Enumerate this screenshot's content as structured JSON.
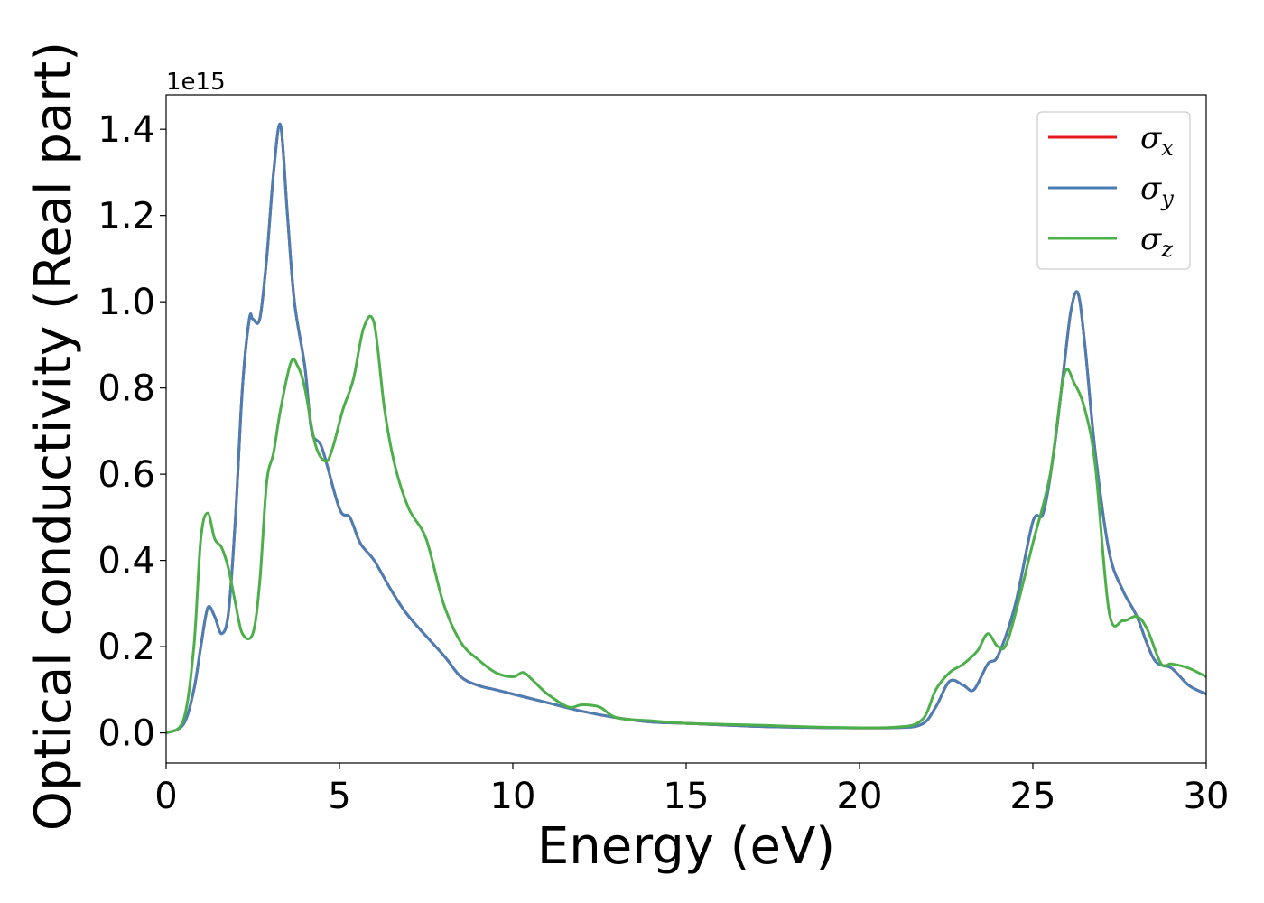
{
  "chart_data": {
    "type": "line",
    "title": "",
    "xlabel": "Energy (eV)",
    "ylabel": "Optical conductivity (Real part)",
    "y_offset_text": "1e15",
    "xlim": [
      0,
      30
    ],
    "ylim": [
      -0.07,
      1.48
    ],
    "xticks": [
      0,
      5,
      10,
      15,
      20,
      25,
      30
    ],
    "xtick_labels": [
      "0",
      "5",
      "10",
      "15",
      "20",
      "25",
      "30"
    ],
    "yticks": [
      0.0,
      0.2,
      0.4,
      0.6,
      0.8,
      1.0,
      1.2,
      1.4
    ],
    "ytick_labels": [
      "0.0",
      "0.2",
      "0.4",
      "0.6",
      "0.8",
      "1.0",
      "1.2",
      "1.4"
    ],
    "grid": false,
    "legend_position": "top-right",
    "series": [
      {
        "name": "σx",
        "symbol": "σ",
        "subscript": "x",
        "color": "#e41a1c",
        "x": [
          0,
          0.5,
          0.8,
          1.0,
          1.2,
          1.4,
          1.6,
          1.8,
          2.0,
          2.2,
          2.4,
          2.5,
          2.7,
          2.9,
          3.1,
          3.3,
          3.5,
          3.7,
          4.0,
          4.2,
          4.5,
          5.0,
          5.3,
          5.6,
          6.0,
          6.5,
          7.0,
          8.0,
          8.5,
          9.0,
          9.5,
          10.0,
          10.5,
          11.0,
          12.0,
          13.0,
          14.0,
          15.0,
          17.0,
          19.0,
          21.0,
          21.8,
          22.2,
          22.6,
          23.0,
          23.3,
          23.7,
          24.0,
          24.5,
          25.0,
          25.3,
          25.6,
          25.9,
          26.1,
          26.3,
          26.5,
          26.8,
          27.2,
          27.6,
          28.0,
          28.5,
          29.0,
          29.5,
          30.0
        ],
        "y": [
          0.0,
          0.02,
          0.1,
          0.2,
          0.29,
          0.27,
          0.23,
          0.28,
          0.5,
          0.8,
          0.96,
          0.96,
          0.96,
          1.1,
          1.3,
          1.41,
          1.2,
          1.0,
          0.85,
          0.7,
          0.66,
          0.52,
          0.5,
          0.44,
          0.4,
          0.33,
          0.27,
          0.18,
          0.13,
          0.11,
          0.1,
          0.09,
          0.08,
          0.07,
          0.05,
          0.035,
          0.025,
          0.022,
          0.015,
          0.012,
          0.012,
          0.02,
          0.06,
          0.12,
          0.11,
          0.1,
          0.16,
          0.18,
          0.3,
          0.49,
          0.51,
          0.65,
          0.85,
          0.98,
          1.02,
          0.9,
          0.65,
          0.42,
          0.33,
          0.27,
          0.17,
          0.15,
          0.11,
          0.09
        ]
      },
      {
        "name": "σy",
        "symbol": "σ",
        "subscript": "y",
        "color": "#4a7fb5",
        "x": [
          0,
          0.5,
          0.8,
          1.0,
          1.2,
          1.4,
          1.6,
          1.8,
          2.0,
          2.2,
          2.4,
          2.5,
          2.7,
          2.9,
          3.1,
          3.3,
          3.5,
          3.7,
          4.0,
          4.2,
          4.5,
          5.0,
          5.3,
          5.6,
          6.0,
          6.5,
          7.0,
          8.0,
          8.5,
          9.0,
          9.5,
          10.0,
          10.5,
          11.0,
          12.0,
          13.0,
          14.0,
          15.0,
          17.0,
          19.0,
          21.0,
          21.8,
          22.2,
          22.6,
          23.0,
          23.3,
          23.7,
          24.0,
          24.5,
          25.0,
          25.3,
          25.6,
          25.9,
          26.1,
          26.3,
          26.5,
          26.8,
          27.2,
          27.6,
          28.0,
          28.5,
          29.0,
          29.5,
          30.0
        ],
        "y": [
          0.0,
          0.02,
          0.1,
          0.2,
          0.29,
          0.27,
          0.23,
          0.28,
          0.5,
          0.8,
          0.96,
          0.96,
          0.96,
          1.1,
          1.3,
          1.41,
          1.2,
          1.0,
          0.85,
          0.7,
          0.66,
          0.52,
          0.5,
          0.44,
          0.4,
          0.33,
          0.27,
          0.18,
          0.13,
          0.11,
          0.1,
          0.09,
          0.08,
          0.07,
          0.05,
          0.035,
          0.025,
          0.022,
          0.015,
          0.012,
          0.012,
          0.02,
          0.06,
          0.12,
          0.11,
          0.1,
          0.16,
          0.18,
          0.3,
          0.49,
          0.51,
          0.65,
          0.85,
          0.98,
          1.02,
          0.9,
          0.65,
          0.42,
          0.33,
          0.27,
          0.17,
          0.15,
          0.11,
          0.09
        ]
      },
      {
        "name": "σz",
        "symbol": "σ",
        "subscript": "z",
        "color": "#4daf4a",
        "x": [
          0,
          0.5,
          0.8,
          1.0,
          1.2,
          1.4,
          1.6,
          1.8,
          2.0,
          2.2,
          2.5,
          2.7,
          2.9,
          3.1,
          3.3,
          3.6,
          3.8,
          4.0,
          4.3,
          4.6,
          4.8,
          5.1,
          5.4,
          5.7,
          6.0,
          6.3,
          6.6,
          7.0,
          7.5,
          8.0,
          8.5,
          9.0,
          9.5,
          10.0,
          10.3,
          10.6,
          11.0,
          11.6,
          12.0,
          12.5,
          13.0,
          14.0,
          15.0,
          17.0,
          19.0,
          21.0,
          21.8,
          22.2,
          22.6,
          23.0,
          23.4,
          23.7,
          24.0,
          24.3,
          25.0,
          25.5,
          25.9,
          26.2,
          26.5,
          26.8,
          27.2,
          27.6,
          28.0,
          28.3,
          28.7,
          29.0,
          29.5,
          30.0
        ],
        "y": [
          0.0,
          0.03,
          0.2,
          0.45,
          0.51,
          0.45,
          0.43,
          0.38,
          0.3,
          0.23,
          0.23,
          0.35,
          0.58,
          0.65,
          0.75,
          0.86,
          0.85,
          0.8,
          0.67,
          0.63,
          0.66,
          0.75,
          0.82,
          0.94,
          0.95,
          0.75,
          0.62,
          0.52,
          0.45,
          0.3,
          0.21,
          0.17,
          0.14,
          0.13,
          0.14,
          0.12,
          0.09,
          0.06,
          0.065,
          0.06,
          0.035,
          0.028,
          0.022,
          0.018,
          0.013,
          0.013,
          0.03,
          0.1,
          0.14,
          0.16,
          0.19,
          0.23,
          0.2,
          0.22,
          0.44,
          0.6,
          0.83,
          0.81,
          0.75,
          0.62,
          0.28,
          0.26,
          0.27,
          0.24,
          0.16,
          0.16,
          0.15,
          0.13
        ]
      }
    ]
  }
}
